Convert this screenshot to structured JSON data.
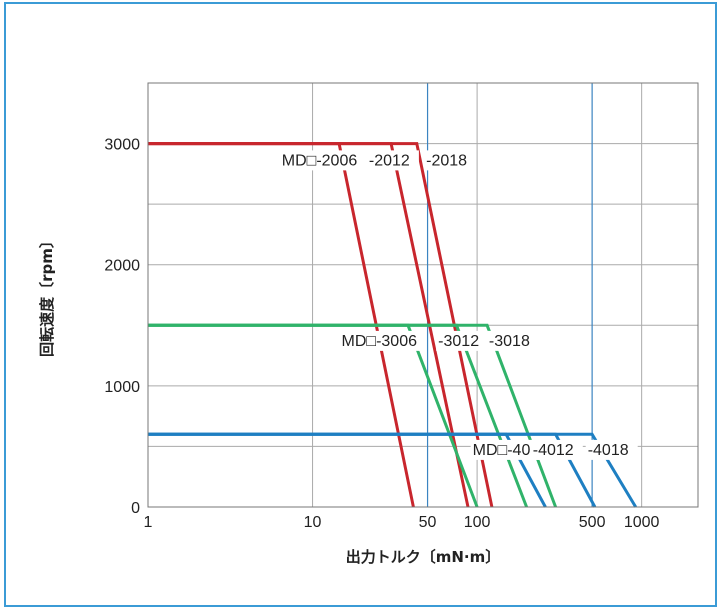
{
  "chart_data": {
    "type": "line",
    "xlabel": "出力トルク〔mN·m〕",
    "ylabel": "回転速度〔rpm〕",
    "x_scale": "log",
    "xlim": [
      1,
      2200
    ],
    "ylim": [
      0,
      3500
    ],
    "x_ticks": [
      {
        "value": 1,
        "label": "1"
      },
      {
        "value": 10,
        "label": "10"
      },
      {
        "value": 50,
        "label": "50"
      },
      {
        "value": 100,
        "label": "100"
      },
      {
        "value": 500,
        "label": "500"
      },
      {
        "value": 1000,
        "label": "1000"
      }
    ],
    "y_ticks": [
      {
        "value": 0,
        "label": "0"
      },
      {
        "value": 1000,
        "label": "1000"
      },
      {
        "value": 2000,
        "label": "2000"
      },
      {
        "value": 3000,
        "label": "3000"
      }
    ],
    "grid": true,
    "colors": {
      "red": "#c8262d",
      "green": "#30b36a",
      "blue": "#1e7fc2",
      "frame": "#3b9bd6",
      "reference_line": "#3b84c1"
    },
    "reference_lines_x": [
      50,
      500
    ],
    "series": [
      {
        "name": "MD□-2006",
        "color": "#c8262d",
        "points": [
          [
            1,
            3000
          ],
          [
            14.5,
            3000
          ],
          [
            41,
            0
          ]
        ]
      },
      {
        "name": "-2012",
        "color": "#c8262d",
        "points": [
          [
            1,
            3000
          ],
          [
            30,
            3000
          ],
          [
            88,
            0
          ]
        ]
      },
      {
        "name": "-2018",
        "color": "#c8262d",
        "points": [
          [
            1,
            3000
          ],
          [
            43,
            3000
          ],
          [
            123,
            0
          ]
        ]
      },
      {
        "name": "MD□-3006",
        "color": "#30b36a",
        "points": [
          [
            1,
            1500
          ],
          [
            38,
            1500
          ],
          [
            100,
            0
          ]
        ]
      },
      {
        "name": "-3012",
        "color": "#30b36a",
        "points": [
          [
            1,
            1500
          ],
          [
            75,
            1500
          ],
          [
            200,
            0
          ]
        ]
      },
      {
        "name": "-3018",
        "color": "#30b36a",
        "points": [
          [
            1,
            1500
          ],
          [
            115,
            1500
          ],
          [
            300,
            0
          ]
        ]
      },
      {
        "name": "MD□-4006",
        "color": "#1e7fc2",
        "points": [
          [
            1,
            600
          ],
          [
            150,
            600
          ],
          [
            260,
            0
          ]
        ]
      },
      {
        "name": "-4012",
        "color": "#1e7fc2",
        "points": [
          [
            1,
            600
          ],
          [
            300,
            600
          ],
          [
            520,
            0
          ]
        ]
      },
      {
        "name": "-4018",
        "color": "#1e7fc2",
        "points": [
          [
            1,
            600
          ],
          [
            500,
            600
          ],
          [
            920,
            0
          ]
        ]
      }
    ],
    "annotations": [
      {
        "text": "MD□-2006",
        "x": 6.5,
        "y": 2820
      },
      {
        "text": "-2012",
        "x": 22,
        "y": 2820
      },
      {
        "text": "-2018",
        "x": 49,
        "y": 2820
      },
      {
        "text": "MD□-3006",
        "x": 15,
        "y": 1330
      },
      {
        "text": "-3012",
        "x": 58,
        "y": 1330
      },
      {
        "text": "-3018",
        "x": 118,
        "y": 1330
      },
      {
        "text": "MD□-4006",
        "x": 94,
        "y": 430
      },
      {
        "text": "-4012",
        "x": 218,
        "y": 430
      },
      {
        "text": "-4018",
        "x": 470,
        "y": 430
      }
    ]
  }
}
